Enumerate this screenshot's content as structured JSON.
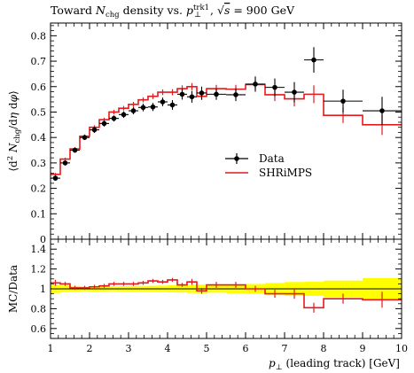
{
  "title": "Toward N_chg density vs. p_⊥^trk1, √s = 900 GeV",
  "chart_data": [
    {
      "type": "line",
      "panel": "main",
      "title": "Toward N_chg density vs. p_⊥^trk1, √s = 900 GeV",
      "xlabel": "p_⊥ (leading track) [GeV]",
      "ylabel": "⟨d² N_chg/dη dφ⟩",
      "xlim": [
        1,
        10
      ],
      "ylim": [
        0,
        0.85
      ],
      "yticks": [
        "0",
        "0.1",
        "0.2",
        "0.3",
        "0.4",
        "0.5",
        "0.6",
        "0.7",
        "0.8"
      ],
      "xticks": [
        "1",
        "2",
        "3",
        "4",
        "5",
        "6",
        "7",
        "8",
        "9",
        "10"
      ],
      "legend_position": "center-right",
      "series": [
        {
          "name": "Data",
          "kind": "points",
          "color": "#000000",
          "points": [
            {
              "x": 1.125,
              "y": 0.24,
              "xerr": 0.125,
              "yerr": 0.01
            },
            {
              "x": 1.375,
              "y": 0.3,
              "xerr": 0.125,
              "yerr": 0.01
            },
            {
              "x": 1.625,
              "y": 0.35,
              "xerr": 0.125,
              "yerr": 0.01
            },
            {
              "x": 1.875,
              "y": 0.4,
              "xerr": 0.125,
              "yerr": 0.01
            },
            {
              "x": 2.125,
              "y": 0.43,
              "xerr": 0.125,
              "yerr": 0.012
            },
            {
              "x": 2.375,
              "y": 0.455,
              "xerr": 0.125,
              "yerr": 0.012
            },
            {
              "x": 2.625,
              "y": 0.475,
              "xerr": 0.125,
              "yerr": 0.012
            },
            {
              "x": 2.875,
              "y": 0.49,
              "xerr": 0.125,
              "yerr": 0.013
            },
            {
              "x": 3.125,
              "y": 0.505,
              "xerr": 0.125,
              "yerr": 0.014
            },
            {
              "x": 3.375,
              "y": 0.518,
              "xerr": 0.125,
              "yerr": 0.015
            },
            {
              "x": 3.625,
              "y": 0.52,
              "xerr": 0.125,
              "yerr": 0.016
            },
            {
              "x": 3.875,
              "y": 0.54,
              "xerr": 0.125,
              "yerr": 0.017
            },
            {
              "x": 4.125,
              "y": 0.528,
              "xerr": 0.125,
              "yerr": 0.019
            },
            {
              "x": 4.375,
              "y": 0.57,
              "xerr": 0.125,
              "yerr": 0.021
            },
            {
              "x": 4.625,
              "y": 0.56,
              "xerr": 0.125,
              "yerr": 0.023
            },
            {
              "x": 4.875,
              "y": 0.575,
              "xerr": 0.125,
              "yerr": 0.025
            },
            {
              "x": 5.25,
              "y": 0.57,
              "xerr": 0.25,
              "yerr": 0.022
            },
            {
              "x": 5.75,
              "y": 0.568,
              "xerr": 0.25,
              "yerr": 0.025
            },
            {
              "x": 6.25,
              "y": 0.61,
              "xerr": 0.25,
              "yerr": 0.03
            },
            {
              "x": 6.75,
              "y": 0.597,
              "xerr": 0.25,
              "yerr": 0.035
            },
            {
              "x": 7.25,
              "y": 0.578,
              "xerr": 0.25,
              "yerr": 0.04
            },
            {
              "x": 7.75,
              "y": 0.705,
              "xerr": 0.25,
              "yerr": 0.05
            },
            {
              "x": 8.5,
              "y": 0.543,
              "xerr": 0.5,
              "yerr": 0.045
            },
            {
              "x": 9.5,
              "y": 0.505,
              "xerr": 0.5,
              "yerr": 0.055
            }
          ]
        },
        {
          "name": "SHRiMPS",
          "kind": "step",
          "color": "#e41a1c",
          "bins": [
            1.0,
            1.25,
            1.5,
            1.75,
            2.0,
            2.25,
            2.5,
            2.75,
            3.0,
            3.25,
            3.5,
            3.75,
            4.0,
            4.25,
            4.5,
            4.75,
            5.0,
            5.5,
            6.0,
            6.5,
            7.0,
            7.5,
            8.0,
            9.0,
            10.0
          ],
          "values": [
            0.255,
            0.315,
            0.355,
            0.405,
            0.44,
            0.47,
            0.5,
            0.515,
            0.53,
            0.548,
            0.562,
            0.578,
            0.578,
            0.592,
            0.6,
            0.562,
            0.592,
            0.59,
            0.608,
            0.568,
            0.552,
            0.57,
            0.487,
            0.45
          ],
          "errors": [
            0.006,
            0.006,
            0.007,
            0.007,
            0.008,
            0.008,
            0.009,
            0.009,
            0.01,
            0.01,
            0.011,
            0.011,
            0.012,
            0.013,
            0.014,
            0.015,
            0.015,
            0.017,
            0.02,
            0.025,
            0.03,
            0.035,
            0.03,
            0.04
          ]
        }
      ]
    },
    {
      "type": "line",
      "panel": "ratio",
      "xlabel": "p_⊥ (leading track) [GeV]",
      "ylabel": "MC/Data",
      "xlim": [
        1,
        10
      ],
      "ylim": [
        0.5,
        1.5
      ],
      "yticks": [
        "0.6",
        "0.8",
        "1",
        "1.2",
        "1.4"
      ],
      "band_color": "#ffff00",
      "data_band": {
        "bins": [
          1.0,
          1.25,
          1.5,
          1.75,
          2.0,
          2.25,
          2.5,
          2.75,
          3.0,
          3.25,
          3.5,
          3.75,
          4.0,
          4.25,
          4.5,
          4.75,
          5.0,
          5.5,
          6.0,
          6.5,
          7.0,
          7.5,
          8.0,
          9.0,
          10.0
        ],
        "rel_err": [
          0.042,
          0.034,
          0.029,
          0.025,
          0.028,
          0.026,
          0.025,
          0.027,
          0.028,
          0.029,
          0.031,
          0.032,
          0.036,
          0.037,
          0.041,
          0.043,
          0.039,
          0.044,
          0.049,
          0.059,
          0.069,
          0.071,
          0.083,
          0.109
        ]
      },
      "series": [
        {
          "name": "SHRiMPS",
          "kind": "step",
          "color": "#e41a1c",
          "bins": [
            1.0,
            1.25,
            1.5,
            1.75,
            2.0,
            2.25,
            2.5,
            2.75,
            3.0,
            3.25,
            3.5,
            3.75,
            4.0,
            4.25,
            4.5,
            4.75,
            5.0,
            5.5,
            6.0,
            6.5,
            7.0,
            7.5,
            8.0,
            9.0,
            10.0
          ],
          "values": [
            1.06,
            1.05,
            1.01,
            1.01,
            1.02,
            1.03,
            1.05,
            1.05,
            1.05,
            1.06,
            1.08,
            1.07,
            1.09,
            1.04,
            1.07,
            0.98,
            1.04,
            1.04,
            1.0,
            0.95,
            0.95,
            0.81,
            0.9,
            0.89
          ],
          "errors": [
            0.03,
            0.02,
            0.02,
            0.02,
            0.02,
            0.02,
            0.02,
            0.02,
            0.02,
            0.02,
            0.02,
            0.02,
            0.02,
            0.02,
            0.03,
            0.03,
            0.03,
            0.03,
            0.03,
            0.04,
            0.05,
            0.05,
            0.05,
            0.08
          ]
        }
      ]
    }
  ]
}
